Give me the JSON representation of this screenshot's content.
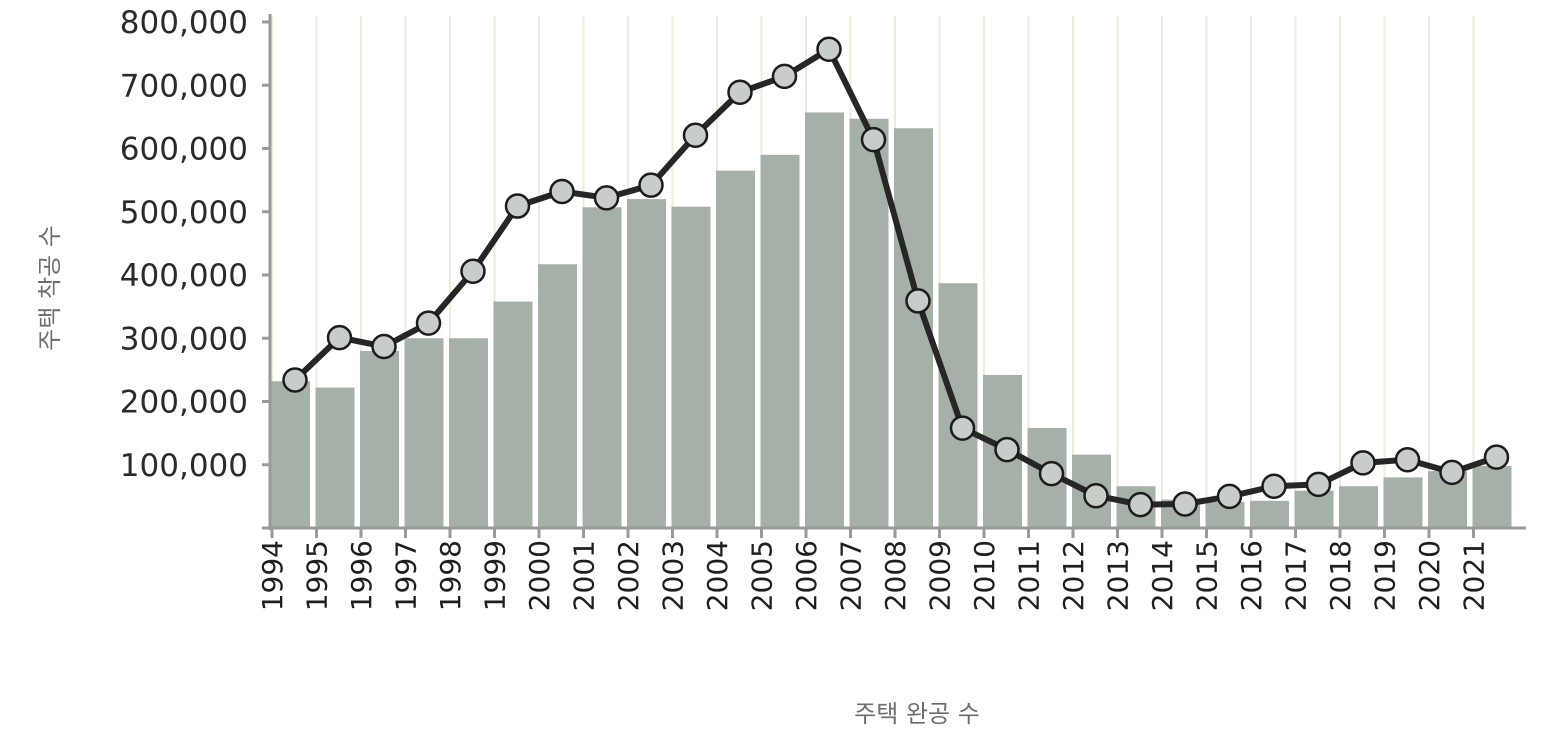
{
  "chart_data": {
    "type": "bar",
    "categories": [
      "1994",
      "1995",
      "1996",
      "1997",
      "1998",
      "1999",
      "2000",
      "2001",
      "2002",
      "2003",
      "2004",
      "2005",
      "2006",
      "2007",
      "2008",
      "2009",
      "2010",
      "2011",
      "2012",
      "2013",
      "2014",
      "2015",
      "2016",
      "2017",
      "2018",
      "2019",
      "2020",
      "2021"
    ],
    "series": [
      {
        "name": "주택 완공 수",
        "type": "bar",
        "values": [
          232000,
          222000,
          280000,
          300000,
          300000,
          358000,
          417000,
          507000,
          520000,
          508000,
          565000,
          590000,
          657000,
          647000,
          632000,
          387000,
          242000,
          158000,
          116000,
          66000,
          45000,
          41000,
          43000,
          59000,
          66000,
          80000,
          90000,
          98000
        ],
        "color": "#a5b0a7"
      },
      {
        "name": "주택 착공 수",
        "type": "line",
        "values": [
          234000,
          301000,
          287000,
          324000,
          406000,
          509000,
          532000,
          522000,
          542000,
          621000,
          689000,
          714000,
          757000,
          614000,
          359000,
          158000,
          124000,
          86000,
          51000,
          37000,
          38000,
          50000,
          66000,
          69000,
          103000,
          108000,
          88000,
          112000
        ],
        "color": "#262626"
      }
    ],
    "title": "",
    "xlabel": "주택 완공 수",
    "ylabel": "주택 착공 수",
    "ylim": [
      0,
      800000
    ],
    "yticks": [
      {
        "value": 100000,
        "label": "100,000"
      },
      {
        "value": 200000,
        "label": "200,000"
      },
      {
        "value": 300000,
        "label": "300,000"
      },
      {
        "value": 400000,
        "label": "400,000"
      },
      {
        "value": 500000,
        "label": "500,000"
      },
      {
        "value": 600000,
        "label": "600,000"
      },
      {
        "value": 700000,
        "label": "700,000"
      },
      {
        "value": 800000,
        "label": "800,000"
      }
    ],
    "grid": "vertical",
    "legend": "none"
  }
}
